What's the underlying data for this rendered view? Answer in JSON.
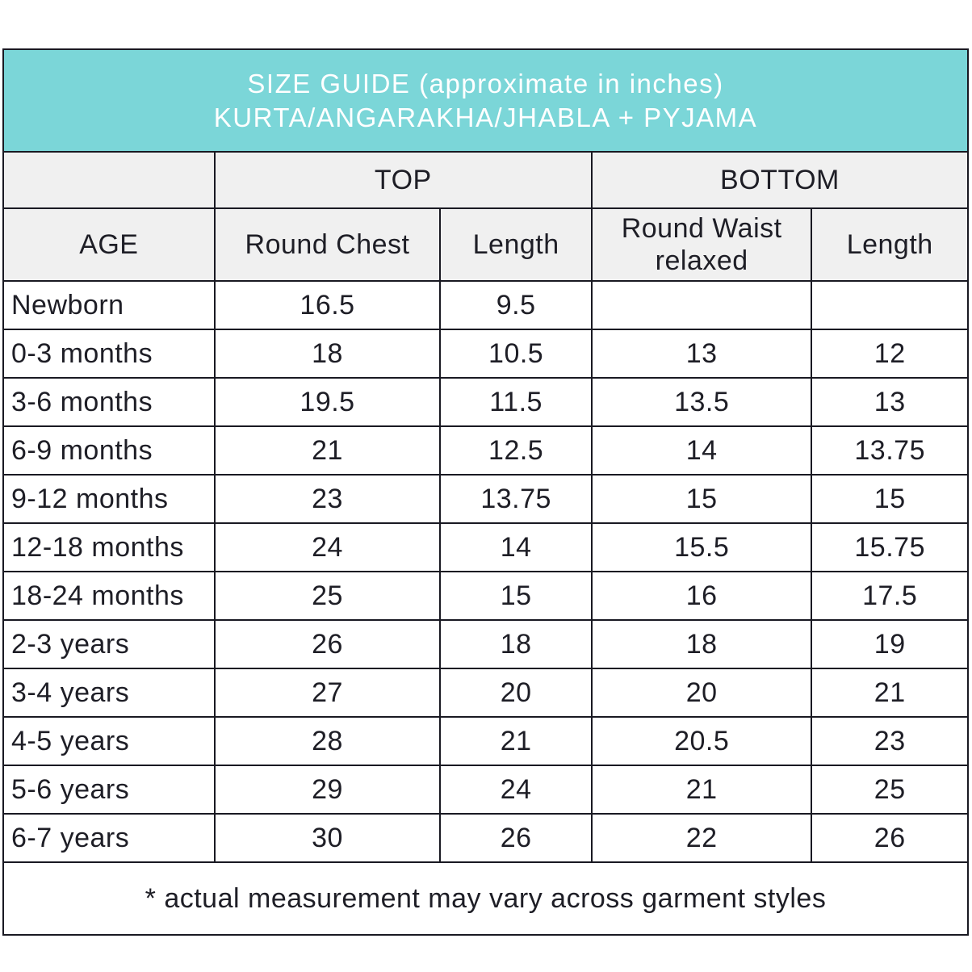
{
  "accent_color": "#7bd6d8",
  "border_color": "#191922",
  "header_bg_color": "#f0f0f0",
  "title": {
    "line1": "SIZE GUIDE (approximate in inches)",
    "line2": "KURTA/ANGARAKHA/JHABLA + PYJAMA"
  },
  "table": {
    "group_headers": {
      "age_spacer": "",
      "top": "TOP",
      "bottom": "BOTTOM"
    },
    "column_headers": [
      "AGE",
      "Round Chest",
      "Length",
      "Round Waist relaxed",
      "Length"
    ],
    "rows": [
      {
        "age": "Newborn",
        "top_round_chest": "16.5",
        "top_length": "9.5",
        "bottom_round_waist": "",
        "bottom_length": ""
      },
      {
        "age": "0-3 months",
        "top_round_chest": "18",
        "top_length": "10.5",
        "bottom_round_waist": "13",
        "bottom_length": "12"
      },
      {
        "age": "3-6 months",
        "top_round_chest": "19.5",
        "top_length": "11.5",
        "bottom_round_waist": "13.5",
        "bottom_length": "13"
      },
      {
        "age": "6-9 months",
        "top_round_chest": "21",
        "top_length": "12.5",
        "bottom_round_waist": "14",
        "bottom_length": "13.75"
      },
      {
        "age": "9-12 months",
        "top_round_chest": "23",
        "top_length": "13.75",
        "bottom_round_waist": "15",
        "bottom_length": "15"
      },
      {
        "age": "12-18 months",
        "top_round_chest": "24",
        "top_length": "14",
        "bottom_round_waist": "15.5",
        "bottom_length": "15.75"
      },
      {
        "age": "18-24 months",
        "top_round_chest": "25",
        "top_length": "15",
        "bottom_round_waist": "16",
        "bottom_length": "17.5"
      },
      {
        "age": "2-3 years",
        "top_round_chest": "26",
        "top_length": "18",
        "bottom_round_waist": "18",
        "bottom_length": "19"
      },
      {
        "age": "3-4 years",
        "top_round_chest": "27",
        "top_length": "20",
        "bottom_round_waist": "20",
        "bottom_length": "21"
      },
      {
        "age": "4-5 years",
        "top_round_chest": "28",
        "top_length": "21",
        "bottom_round_waist": "20.5",
        "bottom_length": "23"
      },
      {
        "age": "5-6 years",
        "top_round_chest": "29",
        "top_length": "24",
        "bottom_round_waist": "21",
        "bottom_length": "25"
      },
      {
        "age": "6-7 years",
        "top_round_chest": "30",
        "top_length": "26",
        "bottom_round_waist": "22",
        "bottom_length": "26"
      }
    ],
    "footnote": "* actual measurement may vary across garment styles"
  }
}
